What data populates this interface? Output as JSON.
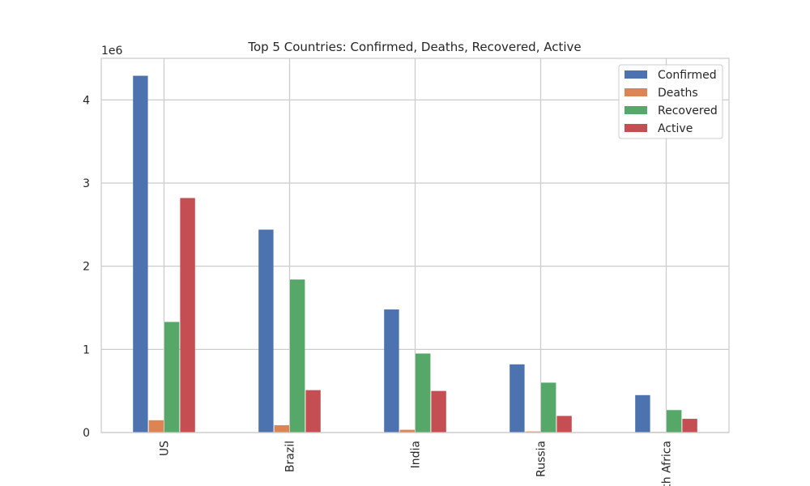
{
  "chart_data": {
    "type": "bar",
    "title": "Top 5 Countries: Confirmed, Deaths, Recovered, Active",
    "xlabel": "",
    "ylabel": "",
    "y_exponent_label": "1e6",
    "ylim": [
      0,
      4500000
    ],
    "yticks": [
      0,
      1000000,
      2000000,
      3000000,
      4000000
    ],
    "ytick_labels": [
      "0",
      "1",
      "2",
      "3",
      "4"
    ],
    "categories": [
      "US",
      "Brazil",
      "India",
      "Russia",
      "South Africa"
    ],
    "grid": true,
    "legend_position": "top-right",
    "series": [
      {
        "name": "Confirmed",
        "color": "#4c72b0",
        "values": [
          4290000,
          2440000,
          1480000,
          820000,
          450000
        ]
      },
      {
        "name": "Deaths",
        "color": "#dd8452",
        "values": [
          148000,
          88000,
          33000,
          13000,
          7000
        ]
      },
      {
        "name": "Recovered",
        "color": "#55a868",
        "values": [
          1330000,
          1840000,
          950000,
          600000,
          270000
        ]
      },
      {
        "name": "Active",
        "color": "#c44e52",
        "values": [
          2820000,
          510000,
          500000,
          200000,
          165000
        ]
      }
    ]
  }
}
